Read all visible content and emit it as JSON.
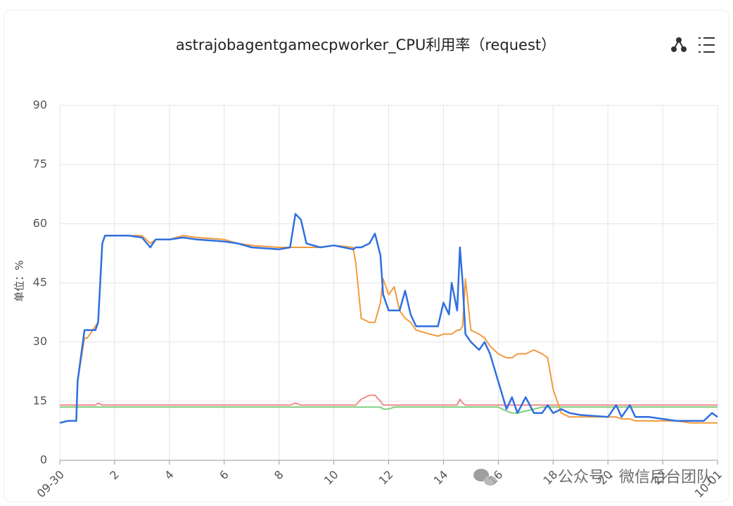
{
  "chart_data": {
    "type": "line",
    "title": "astrajobagentgamecpworker_CPU利用率（request）",
    "y_label": "单位：%",
    "watermark": "公众号 · 微信后台团队",
    "xlim": [
      0,
      24
    ],
    "xticks": [
      {
        "value": 0,
        "label": "09-30"
      },
      2,
      4,
      6,
      8,
      10,
      12,
      14,
      16,
      18,
      20,
      22,
      {
        "value": 24,
        "label": "10-01"
      }
    ],
    "ylim": [
      0,
      90
    ],
    "yticks": [
      0,
      15,
      30,
      45,
      60,
      75,
      90
    ],
    "grid": true,
    "x": [
      0,
      0.3,
      0.6,
      0.65,
      0.9,
      1.0,
      1.3,
      1.4,
      1.55,
      1.65,
      2,
      2.5,
      3,
      3.3,
      3.5,
      4,
      4.5,
      5,
      6,
      6.5,
      7,
      8,
      8.4,
      8.6,
      8.8,
      9,
      9.5,
      10,
      10.7,
      10.8,
      11,
      11.3,
      11.5,
      11.7,
      11.8,
      12,
      12.2,
      12.4,
      12.6,
      12.8,
      13,
      13.5,
      13.8,
      14,
      14.2,
      14.3,
      14.5,
      14.6,
      14.7,
      14.8,
      15,
      15.3,
      15.5,
      15.7,
      16,
      16.3,
      16.5,
      16.7,
      17,
      17.3,
      17.6,
      17.8,
      18,
      18.3,
      18.6,
      19,
      20,
      20.3,
      20.5,
      20.8,
      21,
      21.5,
      22,
      22.5,
      23,
      23.5,
      23.8,
      24
    ],
    "series": [
      {
        "color": "#7fcf7f",
        "width": 2,
        "values": [
          13.5,
          13.5,
          13.5,
          13.5,
          13.5,
          13.5,
          13.5,
          13.5,
          13.5,
          13.5,
          13.5,
          13.5,
          13.5,
          13.5,
          13.5,
          13.5,
          13.5,
          13.5,
          13.5,
          13.5,
          13.5,
          13.5,
          13.5,
          13.5,
          13.5,
          13.5,
          13.5,
          13.5,
          13.5,
          13.5,
          13.5,
          13.5,
          13.5,
          13.5,
          13,
          13,
          13.5,
          13.5,
          13.5,
          13.5,
          13.5,
          13.5,
          13.5,
          13.5,
          13.5,
          13.5,
          13.5,
          13.5,
          13.5,
          13.5,
          13.5,
          13.5,
          13.5,
          13.5,
          13.5,
          12.5,
          12,
          12,
          12.5,
          13,
          13.5,
          13.5,
          13.5,
          13.5,
          13.5,
          13.5,
          13.5,
          13.5,
          13.5,
          13.5,
          13.5,
          13.5,
          13.5,
          13.5,
          13.5,
          13.5,
          13.5,
          13.5
        ]
      },
      {
        "color": "#f08a8a",
        "width": 2,
        "values": [
          14,
          14,
          14,
          14,
          14,
          14,
          14,
          14.5,
          14,
          14,
          14,
          14,
          14,
          14,
          14,
          14,
          14,
          14,
          14,
          14,
          14,
          14,
          14,
          14.5,
          14,
          14,
          14,
          14,
          14,
          14,
          15.5,
          16.5,
          16.5,
          15,
          14,
          14,
          14,
          14,
          14,
          14,
          14,
          14,
          14,
          14,
          14,
          14,
          14,
          15.5,
          14.5,
          14,
          14,
          14,
          14,
          14,
          14,
          14,
          14,
          14,
          14,
          14,
          14,
          14,
          14,
          14,
          14,
          14,
          14,
          14,
          14,
          14,
          14,
          14,
          14,
          14,
          14,
          14,
          14,
          14
        ]
      },
      {
        "color": "#f39a3c",
        "width": 2,
        "values": [
          9.5,
          10,
          10,
          20,
          31,
          31,
          34,
          35,
          55,
          57,
          57,
          57,
          57,
          55,
          56,
          56,
          57,
          56.5,
          56,
          55,
          54.5,
          54,
          54,
          54,
          54,
          54,
          54,
          54.5,
          54,
          50,
          36,
          35,
          35,
          40,
          46,
          42,
          44,
          38,
          36,
          35,
          33,
          32,
          31.5,
          32,
          32,
          32,
          33,
          33,
          34,
          46,
          33,
          32,
          31,
          29,
          27,
          26,
          26,
          27,
          27,
          28,
          27,
          26,
          18,
          12,
          11,
          11,
          11,
          11,
          10.5,
          10.5,
          10,
          10,
          10,
          10,
          9.5,
          9.5,
          9.5,
          9.5
        ]
      },
      {
        "color": "#2f6fe0",
        "width": 2.5,
        "values": [
          9.5,
          10,
          10,
          20,
          33,
          33,
          33,
          35,
          55,
          57,
          57,
          57,
          56.5,
          54,
          56,
          56,
          56.5,
          56,
          55.5,
          55,
          54,
          53.5,
          54,
          62.5,
          61,
          55,
          54,
          54.5,
          53.5,
          54,
          54,
          55,
          57.5,
          52,
          42,
          38,
          38,
          38,
          43,
          37,
          34,
          34,
          34,
          40,
          37,
          45,
          38,
          54,
          45,
          32,
          30,
          28,
          30,
          27,
          20,
          13,
          16,
          12,
          16,
          12,
          12,
          14,
          12,
          13,
          12,
          11.5,
          11,
          14,
          11,
          14,
          11,
          11,
          10.5,
          10,
          10,
          10,
          12,
          11
        ]
      }
    ]
  }
}
